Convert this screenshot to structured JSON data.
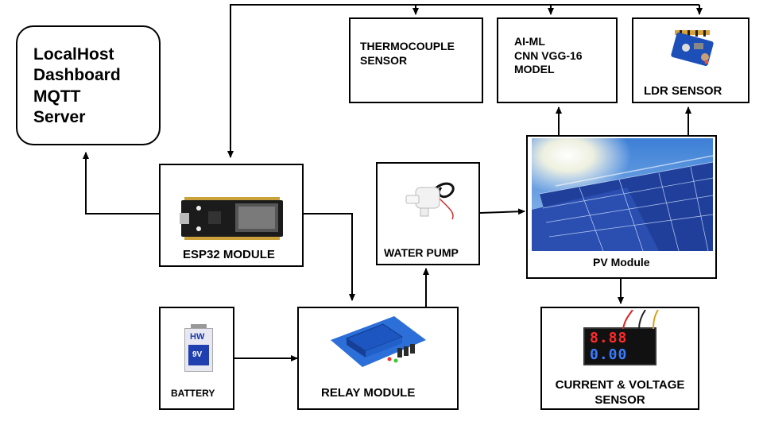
{
  "diagram": {
    "dashboard": "LocalHost\nDashboard\nMQTT\nServer",
    "thermocouple": "THERMOCOUPLE\nSENSOR",
    "aiml": "AI-ML\nCNN VGG-16\nMODEL",
    "ldr": "LDR SENSOR",
    "esp32": "ESP32 MODULE",
    "pump": "WATER PUMP",
    "pv": "PV Module",
    "battery": "BATTERY",
    "relay": "RELAY MODULE",
    "sensor": "CURRENT & VOLTAGE\nSENSOR",
    "meter_top": "8.88",
    "meter_bottom": "0.00",
    "battery_brand": "HW",
    "battery_voltage": "9V"
  },
  "colors": {
    "wire": "#000000",
    "relay_blue": "#1c64c8",
    "meter_red": "#ff2a2a",
    "meter_blue": "#3a7bff"
  }
}
